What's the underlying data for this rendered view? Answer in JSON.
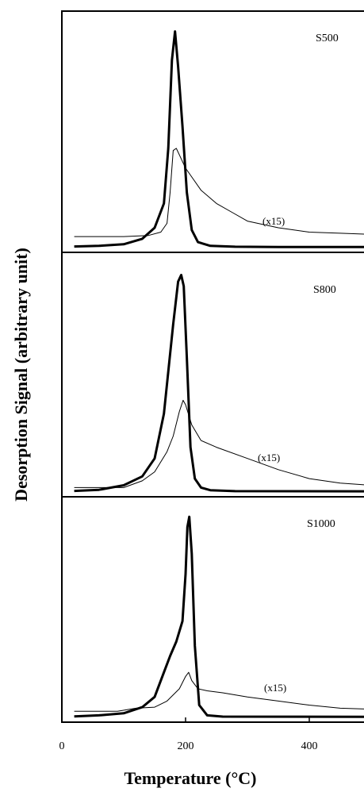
{
  "chart_data": [
    {
      "type": "line",
      "panel_label": "S500",
      "x_unit_note": "Temperature (°C)",
      "xlim": [
        0,
        500
      ],
      "annotation": "(x15)",
      "series": [
        {
          "x": [
            20,
            60,
            100,
            130,
            150,
            165,
            172,
            178,
            183,
            188,
            195,
            202,
            210,
            220,
            240,
            280,
            350,
            500
          ],
          "values": [
            0.005,
            0.008,
            0.015,
            0.04,
            0.09,
            0.2,
            0.45,
            0.85,
            0.98,
            0.82,
            0.55,
            0.25,
            0.08,
            0.025,
            0.008,
            0.004,
            0.003,
            0.003
          ]
        },
        {
          "x": [
            20,
            100,
            140,
            160,
            170,
            175,
            180,
            185,
            190,
            200,
            210,
            225,
            250,
            275,
            300,
            350,
            400,
            450,
            500
          ],
          "values": [
            0.05,
            0.05,
            0.055,
            0.07,
            0.11,
            0.25,
            0.44,
            0.45,
            0.42,
            0.36,
            0.32,
            0.26,
            0.2,
            0.16,
            0.12,
            0.09,
            0.07,
            0.065,
            0.06
          ]
        }
      ]
    },
    {
      "type": "line",
      "panel_label": "S800",
      "xlim": [
        0,
        500
      ],
      "annotation": "(x15)",
      "series": [
        {
          "x": [
            20,
            60,
            100,
            130,
            150,
            165,
            180,
            188,
            193,
            197,
            202,
            208,
            215,
            225,
            240,
            280,
            500
          ],
          "values": [
            0.005,
            0.01,
            0.03,
            0.07,
            0.15,
            0.35,
            0.75,
            0.94,
            0.97,
            0.92,
            0.6,
            0.2,
            0.06,
            0.02,
            0.008,
            0.004,
            0.003
          ]
        },
        {
          "x": [
            20,
            100,
            130,
            150,
            170,
            180,
            190,
            196,
            200,
            210,
            225,
            250,
            300,
            350,
            400,
            450,
            500
          ],
          "values": [
            0.02,
            0.02,
            0.05,
            0.09,
            0.18,
            0.25,
            0.36,
            0.41,
            0.39,
            0.3,
            0.23,
            0.2,
            0.15,
            0.1,
            0.06,
            0.04,
            0.03
          ]
        }
      ]
    },
    {
      "type": "line",
      "panel_label": "S1000",
      "xlim": [
        0,
        500
      ],
      "xticks": [
        0,
        200,
        400
      ],
      "xlabel": "Temperature (°C)",
      "annotation": "(x15)",
      "series": [
        {
          "x": [
            20,
            60,
            100,
            130,
            150,
            165,
            175,
            185,
            195,
            200,
            203,
            206,
            210,
            215,
            222,
            235,
            260,
            500
          ],
          "values": [
            0.005,
            0.01,
            0.02,
            0.05,
            0.1,
            0.22,
            0.3,
            0.37,
            0.47,
            0.7,
            0.93,
            0.98,
            0.8,
            0.35,
            0.06,
            0.01,
            0.004,
            0.003
          ]
        },
        {
          "x": [
            20,
            90,
            120,
            150,
            170,
            190,
            200,
            205,
            210,
            220,
            235,
            260,
            300,
            350,
            400,
            450,
            500
          ],
          "values": [
            0.03,
            0.03,
            0.045,
            0.05,
            0.08,
            0.14,
            0.2,
            0.22,
            0.18,
            0.14,
            0.13,
            0.12,
            0.1,
            0.08,
            0.06,
            0.045,
            0.04
          ]
        }
      ]
    }
  ],
  "ylabel": "Desorption Signal (arbitrary unit)"
}
